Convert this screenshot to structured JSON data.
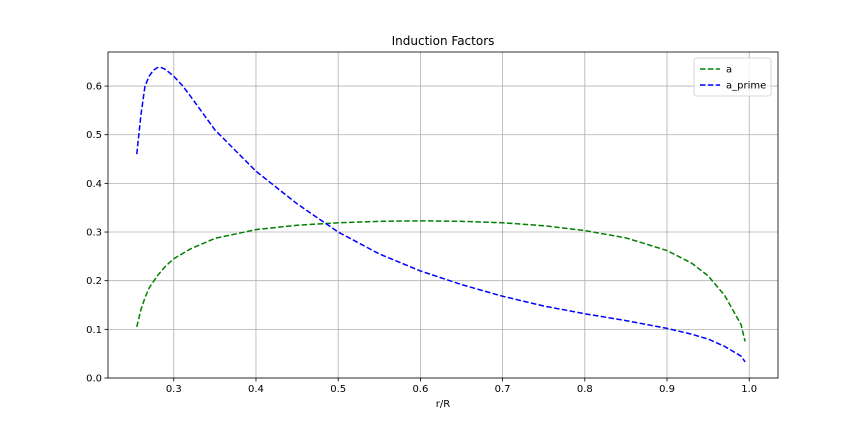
{
  "chart_data": {
    "type": "line",
    "title": "Induction Factors",
    "xlabel": "r/R",
    "ylabel": "",
    "xlim": [
      0.22,
      1.035
    ],
    "ylim": [
      0.0,
      0.67
    ],
    "xticks": [
      "0.3",
      "0.4",
      "0.5",
      "0.6",
      "0.7",
      "0.8",
      "0.9",
      "1.0"
    ],
    "yticks": [
      "0.0",
      "0.1",
      "0.2",
      "0.3",
      "0.4",
      "0.5",
      "0.6"
    ],
    "grid": true,
    "legend_position": "top-right",
    "series": [
      {
        "name": "a",
        "color": "#008000",
        "style": "dashed",
        "x": [
          0.255,
          0.26,
          0.265,
          0.27,
          0.28,
          0.29,
          0.3,
          0.32,
          0.35,
          0.4,
          0.45,
          0.5,
          0.55,
          0.6,
          0.65,
          0.7,
          0.75,
          0.8,
          0.85,
          0.9,
          0.93,
          0.95,
          0.97,
          0.98,
          0.99,
          0.995
        ],
        "y": [
          0.105,
          0.14,
          0.165,
          0.185,
          0.21,
          0.23,
          0.245,
          0.265,
          0.287,
          0.305,
          0.314,
          0.319,
          0.322,
          0.323,
          0.322,
          0.319,
          0.313,
          0.303,
          0.288,
          0.262,
          0.236,
          0.21,
          0.17,
          0.14,
          0.11,
          0.075
        ]
      },
      {
        "name": "a_prime",
        "color": "#0000ff",
        "style": "dashed",
        "x": [
          0.255,
          0.26,
          0.265,
          0.27,
          0.275,
          0.28,
          0.285,
          0.29,
          0.3,
          0.31,
          0.32,
          0.35,
          0.4,
          0.45,
          0.5,
          0.55,
          0.6,
          0.65,
          0.7,
          0.75,
          0.8,
          0.85,
          0.9,
          0.93,
          0.95,
          0.97,
          0.98,
          0.99,
          0.995
        ],
        "y": [
          0.46,
          0.54,
          0.6,
          0.62,
          0.632,
          0.638,
          0.638,
          0.634,
          0.62,
          0.602,
          0.58,
          0.51,
          0.425,
          0.358,
          0.3,
          0.255,
          0.22,
          0.192,
          0.168,
          0.148,
          0.132,
          0.118,
          0.102,
          0.09,
          0.08,
          0.065,
          0.055,
          0.045,
          0.033
        ]
      }
    ]
  }
}
